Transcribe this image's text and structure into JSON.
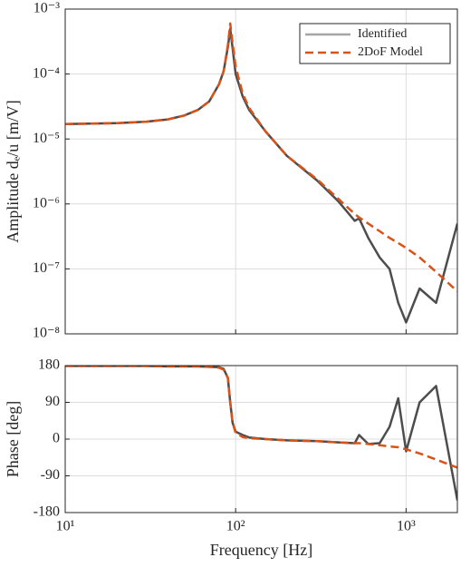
{
  "chart_data": [
    {
      "type": "line",
      "xscale": "log",
      "yscale": "log",
      "grid": true,
      "legend": "northeast",
      "ylabel": "Amplitude dₑ/u [m/V]",
      "xlim": [
        10,
        2000
      ],
      "ylim": [
        1e-08,
        0.001
      ],
      "xticks": [
        {
          "value": 10,
          "label": "10¹"
        },
        {
          "value": 100,
          "label": "10²"
        },
        {
          "value": 1000,
          "label": "10³"
        }
      ],
      "yticks": [
        {
          "value": 1e-08,
          "label": "10⁻⁸"
        },
        {
          "value": 1e-07,
          "label": "10⁻⁷"
        },
        {
          "value": 1e-06,
          "label": "10⁻⁶"
        },
        {
          "value": 1e-05,
          "label": "10⁻⁵"
        },
        {
          "value": 0.0001,
          "label": "10⁻⁴"
        },
        {
          "value": 0.001,
          "label": "10⁻³"
        }
      ],
      "x": [
        10,
        20,
        30,
        40,
        50,
        60,
        70,
        80,
        85,
        90,
        93,
        96,
        100,
        110,
        120,
        150,
        200,
        300,
        400,
        500,
        530,
        600,
        700,
        800,
        900,
        1000,
        1200,
        1500,
        2000
      ],
      "series": [
        {
          "name": "Identified",
          "color": "#a6a6a6",
          "values": [
            1.7e-05,
            1.75e-05,
            1.85e-05,
            2e-05,
            2.3e-05,
            2.8e-05,
            3.8e-05,
            7e-05,
            0.00011,
            0.00026,
            0.0005,
            0.00025,
            0.0001,
            4.5e-05,
            2.8e-05,
            1.3e-05,
            5.5e-06,
            2.3e-06,
            1.1e-06,
            5.5e-07,
            6e-07,
            3e-07,
            1.5e-07,
            1e-07,
            3e-08,
            1.5e-08,
            5e-08,
            3e-08,
            5e-07
          ]
        },
        {
          "name": "2DoF Model",
          "color": "#d95319",
          "values": [
            1.7e-05,
            1.75e-05,
            1.85e-05,
            2e-05,
            2.3e-05,
            2.8e-05,
            3.8e-05,
            7e-05,
            0.00011,
            0.00028,
            0.0006,
            0.0003,
            0.00013,
            5e-05,
            3e-05,
            1.3e-05,
            5.5e-06,
            2.4e-06,
            1.2e-06,
            7e-07,
            6.2e-07,
            5e-07,
            3.8e-07,
            3e-07,
            2.5e-07,
            2.1e-07,
            1.5e-07,
            9e-08,
            4.5e-08
          ]
        }
      ]
    },
    {
      "type": "line",
      "xscale": "log",
      "yscale": "linear",
      "grid": true,
      "xlabel": "Frequency [Hz]",
      "ylabel": "Phase [deg]",
      "xlim": [
        10,
        2000
      ],
      "ylim": [
        -180,
        180
      ],
      "xticks": [
        {
          "value": 10,
          "label": "10¹"
        },
        {
          "value": 100,
          "label": "10²"
        },
        {
          "value": 1000,
          "label": "10³"
        }
      ],
      "yticks": [
        -180,
        -90,
        0,
        90,
        180
      ],
      "x": [
        10,
        20,
        30,
        40,
        50,
        60,
        70,
        80,
        85,
        90,
        93,
        96,
        100,
        110,
        120,
        150,
        200,
        300,
        400,
        500,
        530,
        600,
        700,
        800,
        900,
        1000,
        1200,
        1500,
        2000
      ],
      "series": [
        {
          "name": "Identified",
          "color": "#a6a6a6",
          "values": [
            179,
            179,
            179,
            178,
            178,
            178,
            177,
            176,
            172,
            150,
            90,
            40,
            18,
            10,
            4,
            0,
            -3,
            -5,
            -8,
            -10,
            10,
            -12,
            -10,
            30,
            100,
            -30,
            90,
            130,
            -150
          ]
        },
        {
          "name": "2DoF Model",
          "color": "#d95319",
          "values": [
            179,
            179,
            179,
            178,
            178,
            178,
            177,
            175,
            170,
            150,
            90,
            40,
            15,
            5,
            2,
            0,
            -3,
            -5,
            -8,
            -10,
            -10,
            -12,
            -15,
            -18,
            -20,
            -25,
            -35,
            -50,
            -70
          ]
        }
      ]
    }
  ]
}
